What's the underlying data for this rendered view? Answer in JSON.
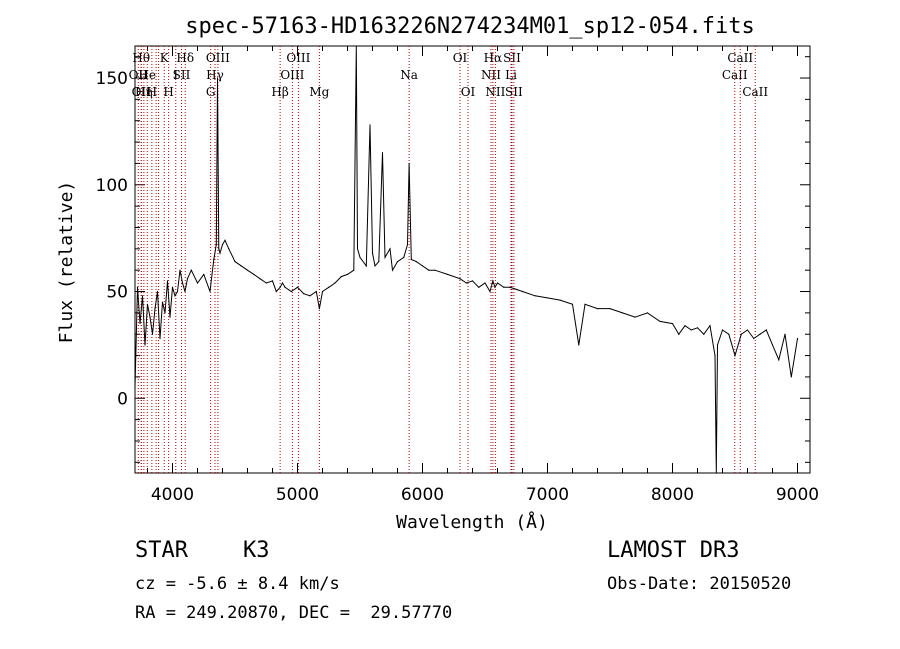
{
  "chart_data": {
    "type": "line",
    "title": "spec-57163-HD163226N274234M01_sp12-054.fits",
    "xlabel": "Wavelength (Å)",
    "ylabel": "Flux (relative)",
    "xlim": [
      3700,
      9100
    ],
    "ylim": [
      -35,
      165
    ],
    "xticks": [
      4000,
      5000,
      6000,
      7000,
      8000,
      9000
    ],
    "yticks": [
      0,
      50,
      100,
      150
    ],
    "grid": false,
    "series": [
      {
        "color": "#000000",
        "x": [
          3700,
          3720,
          3740,
          3760,
          3780,
          3800,
          3820,
          3840,
          3860,
          3880,
          3900,
          3920,
          3940,
          3960,
          3980,
          4000,
          4020,
          4040,
          4060,
          4080,
          4100,
          4120,
          4150,
          4200,
          4250,
          4300,
          4330,
          4350,
          4360,
          4370,
          4380,
          4400,
          4420,
          4450,
          4500,
          4550,
          4600,
          4650,
          4700,
          4750,
          4800,
          4830,
          4861,
          4880,
          4900,
          4950,
          5000,
          5050,
          5100,
          5150,
          5175,
          5200,
          5250,
          5300,
          5350,
          5400,
          5450,
          5470,
          5480,
          5500,
          5550,
          5580,
          5600,
          5620,
          5650,
          5680,
          5700,
          5740,
          5760,
          5800,
          5850,
          5880,
          5893,
          5910,
          5950,
          6000,
          6050,
          6100,
          6200,
          6300,
          6350,
          6400,
          6450,
          6500,
          6540,
          6563,
          6580,
          6600,
          6650,
          6700,
          6750,
          6800,
          6900,
          7000,
          7100,
          7200,
          7250,
          7300,
          7400,
          7500,
          7600,
          7700,
          7800,
          7900,
          8000,
          8050,
          8100,
          8150,
          8200,
          8250,
          8300,
          8340,
          8350,
          8360,
          8400,
          8450,
          8500,
          8550,
          8600,
          8650,
          8700,
          8750,
          8800,
          8850,
          8900,
          8950,
          9000
        ],
        "y": [
          5,
          52,
          35,
          48,
          25,
          44,
          38,
          30,
          42,
          50,
          28,
          45,
          40,
          55,
          38,
          52,
          48,
          50,
          60,
          54,
          50,
          56,
          60,
          54,
          58,
          50,
          65,
          72,
          150,
          70,
          68,
          72,
          74,
          70,
          64,
          62,
          60,
          58,
          56,
          54,
          55,
          50,
          52,
          54,
          52,
          50,
          52,
          49,
          48,
          50,
          42,
          50,
          52,
          54,
          57,
          58,
          60,
          165,
          70,
          66,
          62,
          128,
          68,
          62,
          64,
          115,
          66,
          70,
          60,
          64,
          66,
          72,
          110,
          65,
          64,
          62,
          60,
          60,
          58,
          56,
          54,
          55,
          52,
          54,
          50,
          55,
          52,
          54,
          52,
          52,
          51,
          50,
          48,
          47,
          46,
          44,
          25,
          44,
          42,
          42,
          40,
          38,
          40,
          36,
          35,
          30,
          34,
          32,
          33,
          30,
          34,
          20,
          -35,
          25,
          32,
          30,
          20,
          30,
          32,
          28,
          30,
          32,
          25,
          18,
          30,
          10,
          28
        ]
      }
    ],
    "annotations": [
      {
        "x": 3726,
        "label": "OII",
        "row": 2
      },
      {
        "x": 3750,
        "label": "Hθ",
        "row": 1
      },
      {
        "x": 3750,
        "label": "OII",
        "row": 3
      },
      {
        "x": 3771,
        "label": "Hη",
        "row": 3
      },
      {
        "x": 3798,
        "label": "He",
        "row": 2
      },
      {
        "x": 3835,
        "label": "H",
        "row": 3
      },
      {
        "x": 3869,
        "label": "",
        "row": 0
      },
      {
        "x": 3889,
        "label": "",
        "row": 0
      },
      {
        "x": 3934,
        "label": "K",
        "row": 1
      },
      {
        "x": 3969,
        "label": "H",
        "row": 3
      },
      {
        "x": 4026,
        "label": "I",
        "row": 2
      },
      {
        "x": 4072,
        "label": "SII",
        "row": 2
      },
      {
        "x": 4102,
        "label": "Hδ",
        "row": 1
      },
      {
        "x": 4305,
        "label": "G",
        "row": 3
      },
      {
        "x": 4340,
        "label": "Hγ",
        "row": 2
      },
      {
        "x": 4363,
        "label": "OIII",
        "row": 1
      },
      {
        "x": 4861,
        "label": "Hβ",
        "row": 3
      },
      {
        "x": 4959,
        "label": "OIII",
        "row": 2
      },
      {
        "x": 5007,
        "label": "OIII",
        "row": 1
      },
      {
        "x": 5175,
        "label": "Mg",
        "row": 3
      },
      {
        "x": 5893,
        "label": "Na",
        "row": 2
      },
      {
        "x": 6300,
        "label": "OI",
        "row": 1
      },
      {
        "x": 6364,
        "label": "OI",
        "row": 3
      },
      {
        "x": 6548,
        "label": "NII",
        "row": 2
      },
      {
        "x": 6563,
        "label": "Hα",
        "row": 1
      },
      {
        "x": 6583,
        "label": "NII",
        "row": 3
      },
      {
        "x": 6708,
        "label": "Li",
        "row": 2
      },
      {
        "x": 6716,
        "label": "SII",
        "row": 1
      },
      {
        "x": 6731,
        "label": "SII",
        "row": 3
      },
      {
        "x": 8498,
        "label": "CaII",
        "row": 2
      },
      {
        "x": 8542,
        "label": "CaII",
        "row": 1
      },
      {
        "x": 8662,
        "label": "CaII",
        "row": 3
      }
    ]
  },
  "info": {
    "object_class": "STAR",
    "subclass": "K3",
    "survey": "LAMOST DR3",
    "redshift": "cz = -5.6 ± 8.4 km/s",
    "obs_date": "Obs-Date: 20150520",
    "coords": "RA = 249.20870, DEC =  29.57770"
  }
}
